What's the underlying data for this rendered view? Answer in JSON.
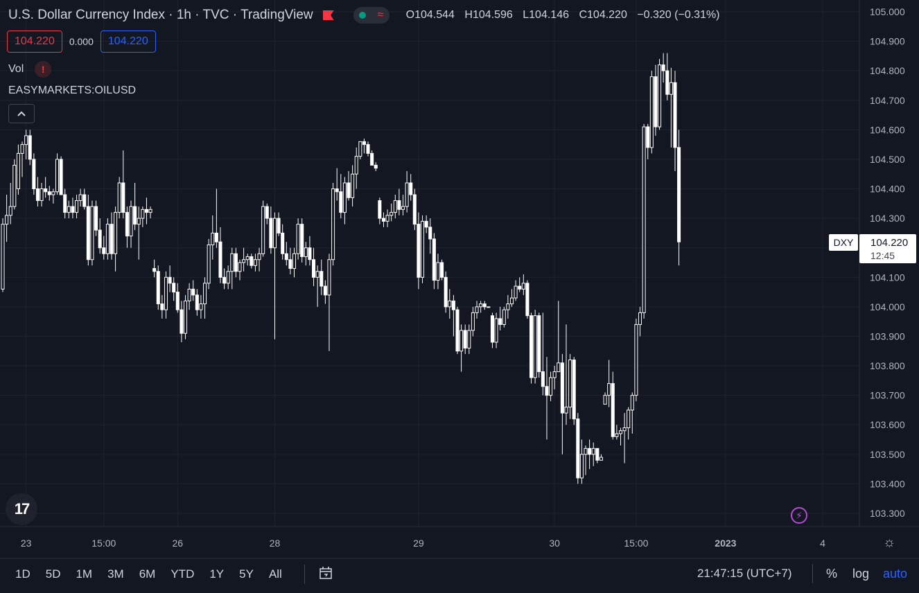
{
  "legend": {
    "title": "U.S. Dollar Currency Index · 1h · TVC · TradingView",
    "ohlc": [
      {
        "k": "O",
        "v": "104.544"
      },
      {
        "k": "H",
        "v": "104.596"
      },
      {
        "k": "L",
        "v": "104.146"
      },
      {
        "k": "C",
        "v": "104.220"
      }
    ],
    "change": "−0.320 (−0.31%)",
    "bid": "104.220",
    "spread": "0.000",
    "ask": "104.220"
  },
  "volume_label": "Vol",
  "warning_icon": "!",
  "compare_symbol": "EASYMARKETS:OILUSD",
  "collapse_icon": "^",
  "logo_text": "17",
  "price_tag": {
    "symbol": "DXY",
    "price": "104.220",
    "countdown": "12:45"
  },
  "toolbar": {
    "timeframes": [
      "1D",
      "5D",
      "1M",
      "3M",
      "6M",
      "YTD",
      "1Y",
      "5Y",
      "All"
    ],
    "clock": "21:47:15 (UTC+7)",
    "percent": "%",
    "log": "log",
    "auto": "auto"
  },
  "colors": {
    "background": "#131722",
    "candle": "#ffffff",
    "grid": "#1f2330",
    "down": "#f23645",
    "accent": "#2962ff"
  },
  "chart_data": {
    "type": "candlestick",
    "ylim": [
      103.24,
      105.02
    ],
    "yticks": [
      "105.000",
      "104.900",
      "104.800",
      "104.700",
      "104.600",
      "104.500",
      "104.400",
      "104.300",
      "104.200",
      "104.100",
      "104.000",
      "103.900",
      "103.800",
      "103.700",
      "103.600",
      "103.500",
      "103.400",
      "103.300"
    ],
    "xticks": [
      "23",
      "15:00",
      "26",
      "28",
      "29",
      "30",
      "15:00",
      "2023",
      "4"
    ],
    "xtick_index": [
      6,
      26,
      45,
      70,
      107,
      142,
      163,
      186,
      211
    ],
    "bars_visible": 206,
    "candles": [
      [
        104.06,
        104.3,
        104.05,
        104.28
      ],
      [
        104.28,
        104.38,
        104.22,
        104.31
      ],
      [
        104.31,
        104.42,
        104.28,
        104.34
      ],
      [
        104.34,
        104.5,
        104.33,
        104.48
      ],
      [
        104.4,
        104.55,
        104.38,
        104.52
      ],
      [
        104.52,
        104.56,
        104.44,
        104.55
      ],
      [
        104.55,
        104.6,
        104.5,
        104.58
      ],
      [
        104.58,
        104.6,
        104.48,
        104.5
      ],
      [
        104.5,
        104.52,
        104.38,
        104.4
      ],
      [
        104.4,
        104.44,
        104.34,
        104.36
      ],
      [
        104.36,
        104.42,
        104.34,
        104.4
      ],
      [
        104.4,
        104.44,
        104.37,
        104.39
      ],
      [
        104.39,
        104.41,
        104.36,
        104.38
      ],
      [
        104.38,
        104.4,
        104.35,
        104.39
      ],
      [
        104.39,
        104.52,
        104.38,
        104.5
      ],
      [
        104.5,
        104.51,
        104.38,
        104.38
      ],
      [
        104.38,
        104.4,
        104.3,
        104.32
      ],
      [
        104.32,
        104.36,
        104.3,
        104.34
      ],
      [
        104.34,
        104.37,
        104.3,
        104.32
      ],
      [
        104.32,
        104.38,
        104.3,
        104.36
      ],
      [
        104.36,
        104.4,
        104.34,
        104.38
      ],
      [
        104.38,
        104.4,
        104.33,
        104.34
      ],
      [
        104.34,
        104.38,
        104.14,
        104.16
      ],
      [
        104.16,
        104.36,
        104.14,
        104.34
      ],
      [
        104.34,
        104.36,
        104.24,
        104.26
      ],
      [
        104.26,
        104.3,
        104.18,
        104.2
      ],
      [
        104.2,
        104.24,
        104.16,
        104.18
      ],
      [
        104.18,
        104.3,
        104.16,
        104.28
      ],
      [
        104.28,
        104.32,
        104.16,
        104.18
      ],
      [
        104.18,
        104.34,
        104.12,
        104.32
      ],
      [
        104.32,
        104.44,
        104.3,
        104.42
      ],
      [
        104.42,
        104.53,
        104.3,
        104.32
      ],
      [
        104.32,
        104.34,
        104.2,
        104.24
      ],
      [
        104.24,
        104.36,
        104.2,
        104.34
      ],
      [
        104.34,
        104.42,
        104.26,
        104.28
      ],
      [
        104.28,
        104.34,
        104.16,
        104.3
      ],
      [
        104.3,
        104.34,
        104.27,
        104.33
      ],
      [
        104.33,
        104.37,
        104.28,
        104.32
      ],
      [
        104.32,
        104.34,
        104.3,
        104.33
      ],
      [
        104.13,
        104.16,
        104.1,
        104.12
      ],
      [
        104.12,
        104.14,
        103.99,
        104.01
      ],
      [
        104.01,
        104.04,
        103.96,
        103.99
      ],
      [
        103.99,
        104.12,
        103.96,
        104.1
      ],
      [
        104.1,
        104.14,
        104.05,
        104.08
      ],
      [
        104.08,
        104.1,
        104.02,
        104.05
      ],
      [
        104.05,
        104.08,
        103.98,
        103.99
      ],
      [
        103.99,
        104.02,
        103.88,
        103.91
      ],
      [
        103.91,
        104.04,
        103.89,
        104.02
      ],
      [
        104.02,
        104.08,
        103.99,
        104.06
      ],
      [
        104.06,
        104.09,
        104.02,
        104.04
      ],
      [
        104.04,
        104.06,
        103.97,
        103.99
      ],
      [
        103.99,
        104.04,
        103.96,
        104.01
      ],
      [
        104.01,
        104.1,
        103.96,
        104.08
      ],
      [
        104.08,
        104.23,
        104.06,
        104.21
      ],
      [
        104.21,
        104.31,
        104.16,
        104.25
      ],
      [
        104.25,
        104.4,
        104.2,
        104.22
      ],
      [
        104.22,
        104.27,
        104.08,
        104.1
      ],
      [
        104.1,
        104.13,
        104.06,
        104.08
      ],
      [
        104.08,
        104.14,
        104.06,
        104.12
      ],
      [
        104.12,
        104.2,
        104.06,
        104.18
      ],
      [
        104.18,
        104.2,
        104.1,
        104.12
      ],
      [
        104.12,
        104.16,
        104.09,
        104.15
      ],
      [
        104.15,
        104.2,
        104.12,
        104.16
      ],
      [
        104.16,
        104.18,
        104.14,
        104.17
      ],
      [
        104.17,
        104.18,
        104.13,
        104.14
      ],
      [
        104.14,
        104.18,
        104.12,
        104.16
      ],
      [
        104.16,
        104.2,
        104.12,
        104.18
      ],
      [
        104.18,
        104.36,
        104.17,
        104.34
      ],
      [
        104.34,
        104.35,
        104.28,
        104.3
      ],
      [
        104.3,
        104.34,
        104.18,
        104.2
      ],
      [
        104.2,
        104.32,
        103.89,
        104.3
      ],
      [
        104.3,
        104.32,
        104.24,
        104.25
      ],
      [
        104.25,
        104.28,
        104.16,
        104.18
      ],
      [
        104.18,
        104.22,
        104.14,
        104.16
      ],
      [
        104.16,
        104.2,
        104.11,
        104.13
      ],
      [
        104.13,
        104.2,
        104.1,
        104.18
      ],
      [
        104.18,
        104.3,
        104.16,
        104.28
      ],
      [
        104.28,
        104.3,
        104.15,
        104.17
      ],
      [
        104.17,
        104.22,
        104.14,
        104.2
      ],
      [
        104.2,
        104.24,
        104.14,
        104.16
      ],
      [
        104.16,
        104.2,
        104.07,
        104.1
      ],
      [
        104.1,
        104.14,
        104.0,
        104.12
      ],
      [
        104.12,
        104.16,
        104.04,
        104.07
      ],
      [
        104.07,
        104.09,
        104.01,
        104.04
      ],
      [
        104.04,
        104.18,
        103.85,
        104.16
      ],
      [
        104.16,
        104.42,
        104.14,
        104.4
      ],
      [
        104.4,
        104.47,
        104.36,
        104.39
      ],
      [
        104.39,
        104.45,
        104.3,
        104.32
      ],
      [
        104.32,
        104.44,
        104.28,
        104.42
      ],
      [
        104.42,
        104.46,
        104.36,
        104.37
      ],
      [
        104.37,
        104.48,
        104.34,
        104.45
      ],
      [
        104.45,
        104.54,
        104.4,
        104.51
      ],
      [
        104.51,
        104.56,
        104.5,
        104.56
      ],
      [
        104.56,
        104.57,
        104.52,
        104.55
      ],
      [
        104.55,
        104.56,
        104.51,
        104.52
      ],
      [
        104.52,
        104.53,
        104.48,
        104.48
      ],
      [
        104.48,
        104.49,
        104.46,
        104.47
      ],
      [
        104.36,
        104.37,
        104.28,
        104.3
      ],
      [
        104.3,
        104.32,
        104.27,
        104.29
      ],
      [
        104.29,
        104.33,
        104.27,
        104.31
      ],
      [
        104.31,
        104.35,
        104.29,
        104.32
      ],
      [
        104.32,
        104.38,
        104.3,
        104.36
      ],
      [
        104.36,
        104.4,
        104.31,
        104.33
      ],
      [
        104.33,
        104.38,
        104.31,
        104.34
      ],
      [
        104.34,
        104.46,
        104.32,
        104.42
      ],
      [
        104.42,
        104.45,
        104.36,
        104.38
      ],
      [
        104.38,
        104.4,
        104.26,
        104.28
      ],
      [
        104.28,
        104.32,
        104.06,
        104.1
      ],
      [
        104.1,
        104.31,
        104.08,
        104.29
      ],
      [
        104.29,
        104.31,
        104.25,
        104.27
      ],
      [
        104.27,
        104.3,
        104.18,
        104.23
      ],
      [
        104.23,
        104.25,
        104.06,
        104.09
      ],
      [
        104.09,
        104.18,
        104.06,
        104.15
      ],
      [
        104.15,
        104.16,
        104.09,
        104.1
      ],
      [
        104.1,
        104.12,
        103.98,
        104.0
      ],
      [
        104.0,
        104.06,
        103.96,
        104.02
      ],
      [
        104.02,
        104.04,
        103.9,
        103.99
      ],
      [
        103.99,
        104.0,
        103.84,
        103.85
      ],
      [
        103.85,
        103.94,
        103.78,
        103.92
      ],
      [
        103.92,
        103.94,
        103.84,
        103.86
      ],
      [
        103.86,
        103.94,
        103.84,
        103.92
      ],
      [
        103.92,
        104.0,
        103.9,
        103.98
      ],
      [
        103.98,
        104.02,
        103.96,
        104.0
      ],
      [
        104.0,
        104.02,
        103.98,
        104.01
      ],
      [
        104.01,
        104.02,
        103.99,
        104.0
      ],
      [
        104.0,
        104.0,
        104.0,
        104.0
      ],
      [
        103.97,
        103.98,
        103.86,
        103.88
      ],
      [
        103.88,
        103.98,
        103.86,
        103.96
      ],
      [
        103.96,
        104.0,
        103.92,
        103.94
      ],
      [
        103.94,
        104.0,
        103.93,
        103.99
      ],
      [
        103.99,
        104.04,
        103.96,
        104.01
      ],
      [
        104.01,
        104.06,
        104.0,
        104.03
      ],
      [
        104.03,
        104.09,
        104.02,
        104.07
      ],
      [
        104.07,
        104.1,
        104.05,
        104.06
      ],
      [
        104.06,
        104.11,
        104.04,
        104.08
      ],
      [
        104.08,
        104.09,
        103.96,
        103.97
      ],
      [
        103.97,
        103.98,
        103.74,
        103.76
      ],
      [
        103.76,
        103.99,
        103.74,
        103.97
      ],
      [
        103.97,
        103.98,
        103.76,
        103.78
      ],
      [
        103.78,
        103.98,
        103.7,
        103.73
      ],
      [
        103.73,
        103.83,
        103.55,
        103.7
      ],
      [
        103.7,
        103.78,
        103.68,
        103.76
      ],
      [
        103.76,
        103.8,
        103.72,
        103.78
      ],
      [
        103.78,
        104.02,
        103.78,
        103.81
      ],
      [
        103.81,
        103.84,
        103.5,
        103.64
      ],
      [
        103.64,
        103.94,
        103.6,
        103.66
      ],
      [
        103.66,
        103.84,
        103.62,
        103.82
      ],
      [
        103.82,
        103.83,
        103.6,
        103.62
      ],
      [
        103.62,
        103.64,
        103.4,
        103.42
      ],
      [
        103.42,
        103.55,
        103.4,
        103.5
      ],
      [
        103.5,
        103.53,
        103.43,
        103.52
      ],
      [
        103.52,
        103.55,
        103.45,
        103.5
      ],
      [
        103.5,
        103.54,
        103.46,
        103.52
      ],
      [
        103.52,
        103.52,
        103.47,
        103.48
      ],
      [
        103.48,
        103.5,
        103.48,
        103.49
      ],
      [
        103.67,
        103.71,
        103.67,
        103.7
      ],
      [
        103.7,
        103.82,
        103.66,
        103.74
      ],
      [
        103.74,
        103.78,
        103.55,
        103.56
      ],
      [
        103.56,
        103.6,
        103.55,
        103.57
      ],
      [
        103.57,
        103.59,
        103.53,
        103.58
      ],
      [
        103.58,
        103.64,
        103.47,
        103.59
      ],
      [
        103.59,
        103.66,
        103.55,
        103.65
      ],
      [
        103.65,
        103.71,
        103.57,
        103.7
      ],
      [
        103.7,
        103.96,
        103.68,
        103.94
      ],
      [
        103.94,
        104.0,
        103.9,
        103.98
      ],
      [
        103.98,
        104.62,
        103.96,
        104.61
      ],
      [
        104.61,
        104.62,
        104.5,
        104.54
      ],
      [
        104.54,
        104.8,
        104.52,
        104.78
      ],
      [
        104.78,
        104.82,
        104.58,
        104.61
      ],
      [
        104.61,
        104.84,
        104.6,
        104.82
      ],
      [
        104.82,
        104.86,
        104.76,
        104.8
      ],
      [
        104.8,
        104.86,
        104.7,
        104.72
      ],
      [
        104.72,
        104.81,
        104.54,
        104.76
      ],
      [
        104.76,
        104.8,
        104.46,
        104.54
      ],
      [
        104.54,
        104.6,
        104.14,
        104.22
      ]
    ]
  }
}
